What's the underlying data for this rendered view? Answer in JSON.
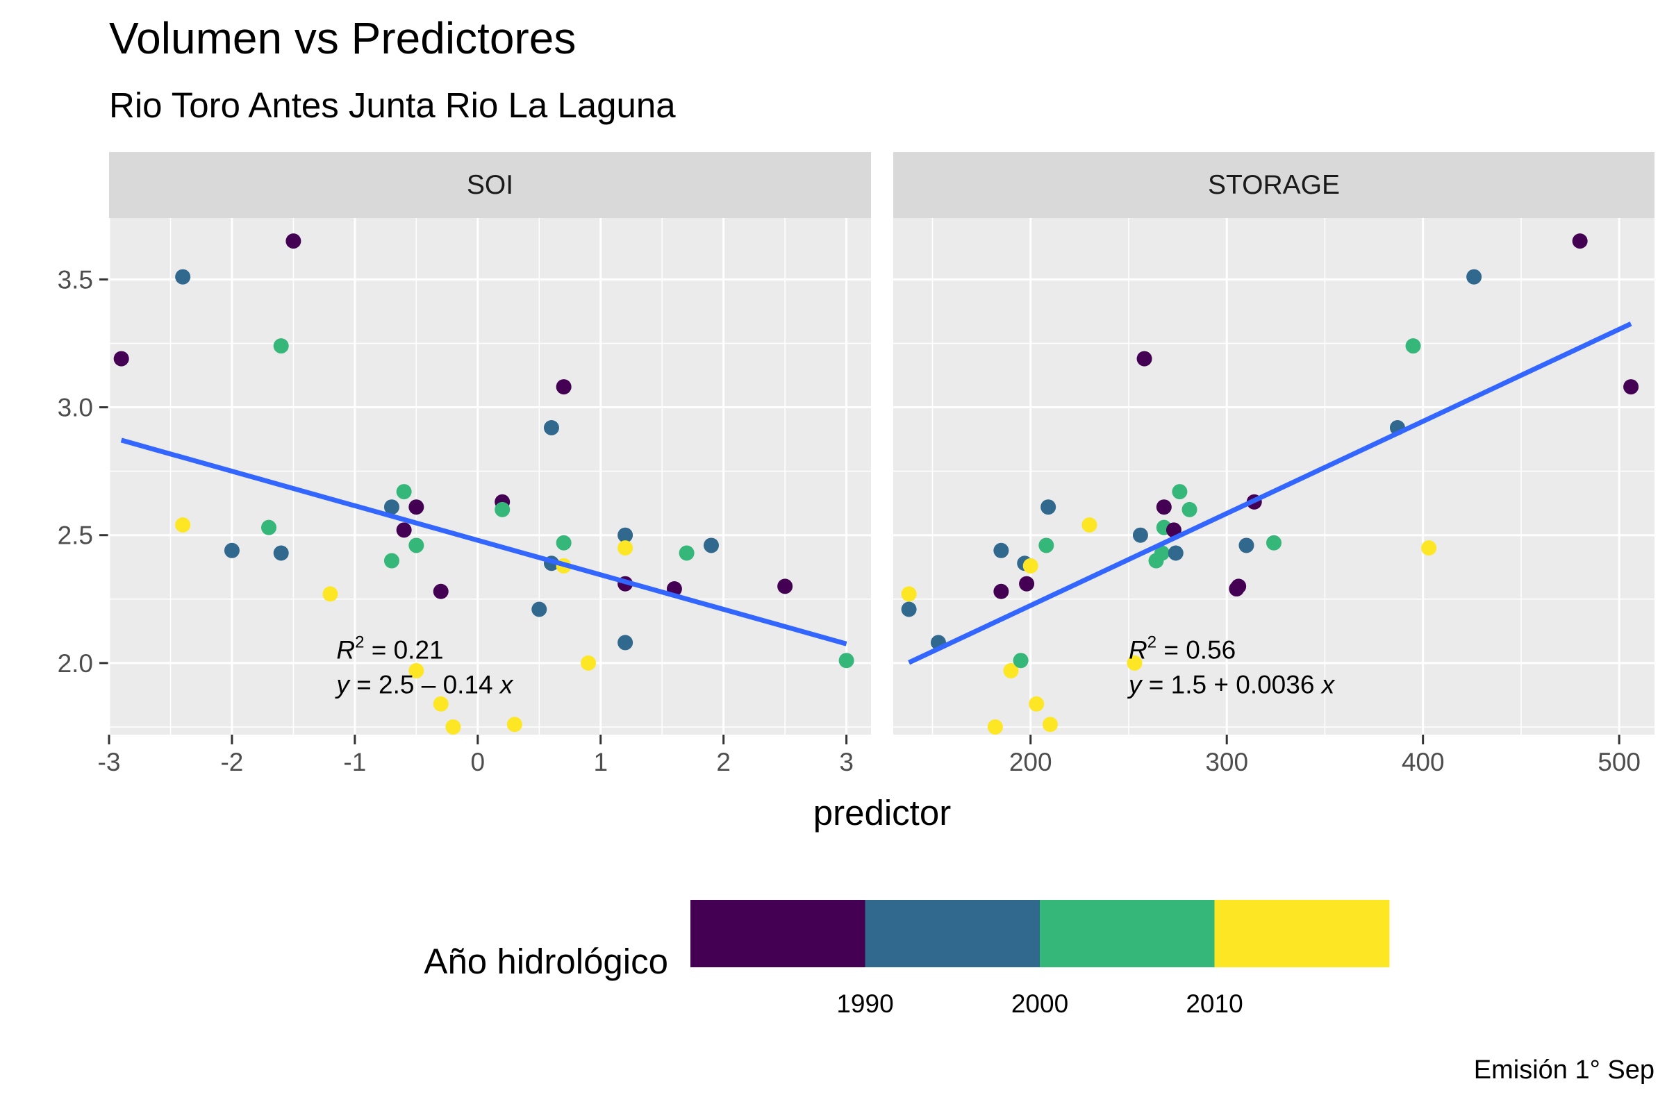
{
  "title": "Volumen vs Predictores",
  "subtitle": "Rio Toro Antes Junta Rio La Laguna",
  "caption": "Emisión 1° Sep",
  "colors": {
    "panel_bg": "#ebebeb",
    "strip_bg": "#d9d9d9",
    "grid": "#ffffff",
    "fit_line": "#3366ff",
    "palette": [
      "#440154",
      "#31688e",
      "#35b779",
      "#fde725"
    ]
  },
  "chart_data": {
    "type": "scatter",
    "xlabel": "predictor",
    "ylabel": "",
    "grid": true,
    "legend_position": "bottom",
    "legend": {
      "title": "Año hidrológico",
      "type": "binned colorbar",
      "bins": [
        [
          1980,
          1990
        ],
        [
          1990,
          2000
        ],
        [
          2000,
          2010
        ],
        [
          2010,
          2020
        ]
      ],
      "tick_labels": [
        "1990",
        "2000",
        "2010"
      ]
    },
    "y_ticks": [
      2.0,
      2.5,
      3.0,
      3.5
    ],
    "ylim": [
      1.72,
      3.74
    ],
    "panels": [
      {
        "strip": "SOI",
        "xlim": [
          -3.0,
          3.2
        ],
        "x_ticks": [
          -3,
          -2,
          -1,
          0,
          1,
          2,
          3
        ],
        "x_tick_labels": [
          "-3",
          "-2",
          "-1",
          "0",
          "1",
          "2",
          "3"
        ],
        "fit": {
          "intercept": 2.48,
          "slope": -0.135,
          "x_range": [
            -2.9,
            3.0
          ]
        },
        "annotation": {
          "r2": "0.21",
          "equation": "2.5 – 0.14",
          "x": -1.15,
          "y": 2.05
        },
        "points": [
          {
            "x": -2.9,
            "y": 3.19,
            "bin": 0
          },
          {
            "x": -2.4,
            "y": 3.51,
            "bin": 1
          },
          {
            "x": -2.4,
            "y": 2.54,
            "bin": 3
          },
          {
            "x": -2.0,
            "y": 2.44,
            "bin": 1
          },
          {
            "x": -1.7,
            "y": 2.53,
            "bin": 2
          },
          {
            "x": -1.6,
            "y": 3.24,
            "bin": 2
          },
          {
            "x": -1.6,
            "y": 2.43,
            "bin": 1
          },
          {
            "x": -1.5,
            "y": 3.65,
            "bin": 0
          },
          {
            "x": -1.2,
            "y": 2.27,
            "bin": 3
          },
          {
            "x": -0.7,
            "y": 2.61,
            "bin": 1
          },
          {
            "x": -0.7,
            "y": 2.4,
            "bin": 2
          },
          {
            "x": -0.6,
            "y": 2.67,
            "bin": 2
          },
          {
            "x": -0.6,
            "y": 2.52,
            "bin": 0
          },
          {
            "x": -0.5,
            "y": 2.61,
            "bin": 0
          },
          {
            "x": -0.5,
            "y": 2.46,
            "bin": 2
          },
          {
            "x": -0.5,
            "y": 1.97,
            "bin": 3
          },
          {
            "x": -0.3,
            "y": 2.28,
            "bin": 0
          },
          {
            "x": -0.3,
            "y": 1.84,
            "bin": 3
          },
          {
            "x": -0.2,
            "y": 1.75,
            "bin": 3
          },
          {
            "x": 0.2,
            "y": 2.63,
            "bin": 0
          },
          {
            "x": 0.2,
            "y": 2.6,
            "bin": 2
          },
          {
            "x": 0.3,
            "y": 1.76,
            "bin": 3
          },
          {
            "x": 0.5,
            "y": 2.21,
            "bin": 1
          },
          {
            "x": 0.6,
            "y": 2.92,
            "bin": 1
          },
          {
            "x": 0.6,
            "y": 2.39,
            "bin": 1
          },
          {
            "x": 0.7,
            "y": 3.08,
            "bin": 0
          },
          {
            "x": 0.7,
            "y": 2.47,
            "bin": 2
          },
          {
            "x": 0.7,
            "y": 2.38,
            "bin": 3
          },
          {
            "x": 0.9,
            "y": 2.0,
            "bin": 3
          },
          {
            "x": 1.2,
            "y": 2.5,
            "bin": 1
          },
          {
            "x": 1.2,
            "y": 2.45,
            "bin": 3
          },
          {
            "x": 1.2,
            "y": 2.31,
            "bin": 0
          },
          {
            "x": 1.2,
            "y": 2.08,
            "bin": 1
          },
          {
            "x": 1.6,
            "y": 2.29,
            "bin": 0
          },
          {
            "x": 1.7,
            "y": 2.43,
            "bin": 2
          },
          {
            "x": 1.9,
            "y": 2.46,
            "bin": 1
          },
          {
            "x": 2.5,
            "y": 2.3,
            "bin": 0
          },
          {
            "x": 3.0,
            "y": 2.01,
            "bin": 2
          }
        ]
      },
      {
        "strip": "STORAGE",
        "xlim": [
          130,
          518
        ],
        "x_ticks": [
          200,
          300,
          400,
          500
        ],
        "x_tick_labels": [
          "200",
          "300",
          "400",
          "500"
        ],
        "fit": {
          "intercept": 1.505,
          "slope": 0.0036,
          "x_range": [
            138,
            506
          ]
        },
        "annotation": {
          "r2": "0.56",
          "equation": "1.5 + 0.0036",
          "x": 250,
          "y": 2.05
        },
        "points": [
          {
            "x": 138,
            "y": 2.27,
            "bin": 3
          },
          {
            "x": 138,
            "y": 2.21,
            "bin": 1
          },
          {
            "x": 153,
            "y": 2.08,
            "bin": 1
          },
          {
            "x": 182,
            "y": 1.75,
            "bin": 3
          },
          {
            "x": 185,
            "y": 2.44,
            "bin": 1
          },
          {
            "x": 185,
            "y": 2.28,
            "bin": 0
          },
          {
            "x": 190,
            "y": 1.97,
            "bin": 3
          },
          {
            "x": 195,
            "y": 2.01,
            "bin": 2
          },
          {
            "x": 197,
            "y": 2.39,
            "bin": 1
          },
          {
            "x": 198,
            "y": 2.31,
            "bin": 0
          },
          {
            "x": 200,
            "y": 2.38,
            "bin": 3
          },
          {
            "x": 203,
            "y": 1.84,
            "bin": 3
          },
          {
            "x": 208,
            "y": 2.46,
            "bin": 2
          },
          {
            "x": 209,
            "y": 2.61,
            "bin": 1
          },
          {
            "x": 210,
            "y": 1.76,
            "bin": 3
          },
          {
            "x": 230,
            "y": 2.54,
            "bin": 3
          },
          {
            "x": 253,
            "y": 2.0,
            "bin": 3
          },
          {
            "x": 256,
            "y": 2.5,
            "bin": 1
          },
          {
            "x": 258,
            "y": 3.19,
            "bin": 0
          },
          {
            "x": 264,
            "y": 2.4,
            "bin": 2
          },
          {
            "x": 267,
            "y": 2.43,
            "bin": 2
          },
          {
            "x": 268,
            "y": 2.61,
            "bin": 0
          },
          {
            "x": 268,
            "y": 2.53,
            "bin": 2
          },
          {
            "x": 273,
            "y": 2.52,
            "bin": 0
          },
          {
            "x": 274,
            "y": 2.43,
            "bin": 1
          },
          {
            "x": 276,
            "y": 2.67,
            "bin": 2
          },
          {
            "x": 281,
            "y": 2.6,
            "bin": 2
          },
          {
            "x": 305,
            "y": 2.29,
            "bin": 0
          },
          {
            "x": 306,
            "y": 2.3,
            "bin": 0
          },
          {
            "x": 310,
            "y": 2.46,
            "bin": 1
          },
          {
            "x": 314,
            "y": 2.63,
            "bin": 0
          },
          {
            "x": 324,
            "y": 2.47,
            "bin": 2
          },
          {
            "x": 387,
            "y": 2.92,
            "bin": 1
          },
          {
            "x": 395,
            "y": 3.24,
            "bin": 2
          },
          {
            "x": 403,
            "y": 2.45,
            "bin": 3
          },
          {
            "x": 426,
            "y": 3.51,
            "bin": 1
          },
          {
            "x": 480,
            "y": 3.65,
            "bin": 0
          },
          {
            "x": 506,
            "y": 3.08,
            "bin": 0
          }
        ]
      }
    ]
  }
}
